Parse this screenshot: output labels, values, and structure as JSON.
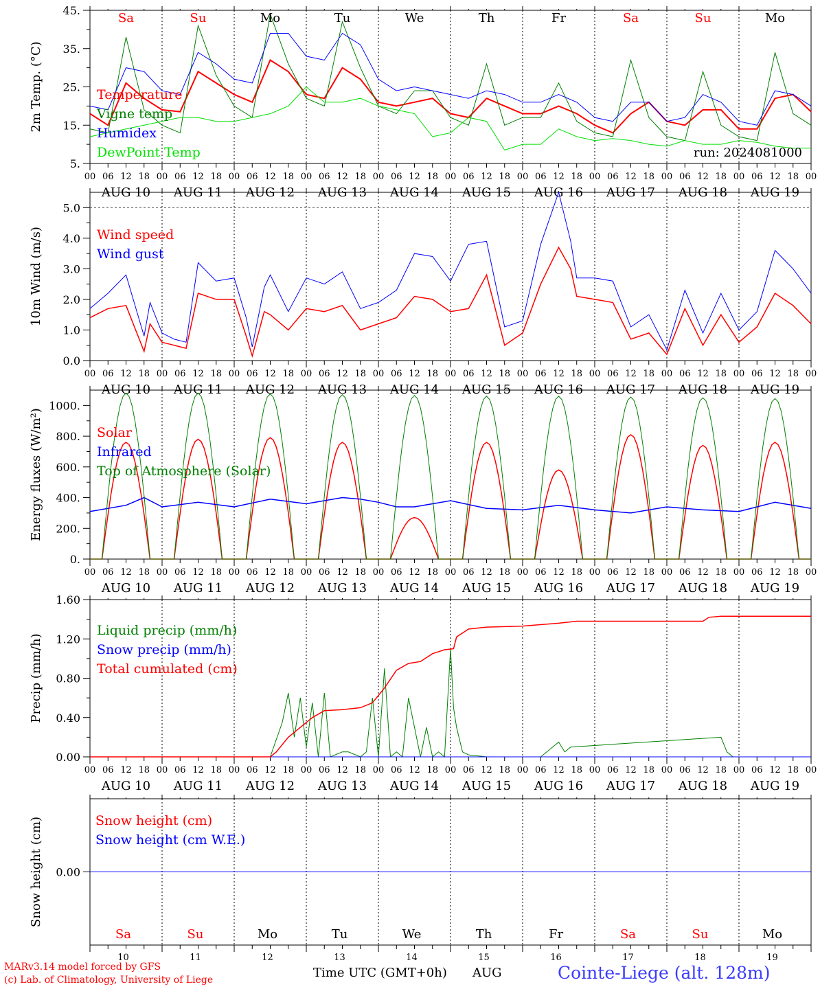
{
  "run_label": "run: 2024081000",
  "time_axis_label": "Time UTC (GMT+0h)",
  "month_label": "AUG",
  "credit_line1": "MARv3.14 model forced by GFS",
  "credit_line2": "(c) Lab. of Climatology, University of Liege",
  "station_label": "Cointe-Liege (alt. 128m)",
  "days": [
    "10",
    "11",
    "12",
    "13",
    "14",
    "15",
    "16",
    "17",
    "18",
    "19"
  ],
  "day_labels": [
    "AUG 10",
    "AUG 11",
    "AUG 12",
    "AUG 13",
    "AUG 14",
    "AUG 15",
    "AUG 16",
    "AUG 17",
    "AUG 18",
    "AUG 19"
  ],
  "weekdays": [
    "Sa",
    "Su",
    "Mo",
    "Tu",
    "We",
    "Th",
    "Fr",
    "Sa",
    "Su",
    "Mo"
  ],
  "weekday_colors": [
    "#ff0000",
    "#ff0000",
    "#000000",
    "#000000",
    "#000000",
    "#000000",
    "#000000",
    "#ff0000",
    "#ff0000",
    "#000000"
  ],
  "hour_ticks": [
    "00",
    "06",
    "12",
    "18"
  ],
  "last_hour_tick": "00",
  "chart_data": [
    {
      "id": "temp",
      "type": "line",
      "ylabel": "2m Temp. (°C)",
      "ylim": [
        5,
        45
      ],
      "yticks": [
        5,
        15,
        25,
        35,
        45
      ],
      "ytick_labels": [
        "5.",
        "15.",
        "25.",
        "35.",
        "45."
      ],
      "x_unit": "hours since Aug 10 00 UTC",
      "legend": "upper-left",
      "series": [
        {
          "name": "Temperature",
          "color": "#ff0000",
          "width": 2,
          "x": [
            0,
            6,
            12,
            18,
            24,
            30,
            36,
            42,
            48,
            54,
            60,
            66,
            72,
            78,
            84,
            90,
            96,
            102,
            108,
            114,
            120,
            126,
            132,
            138,
            144,
            150,
            156,
            162,
            168,
            174,
            180,
            186,
            192,
            198,
            204,
            210,
            216,
            222,
            228,
            234,
            240
          ],
          "values": [
            18,
            15,
            26,
            22,
            19,
            18.5,
            29,
            26,
            23,
            21,
            32,
            29,
            23,
            22,
            30,
            27,
            21,
            20,
            21,
            22,
            18,
            17,
            22,
            20,
            18,
            18,
            20,
            18,
            15,
            13,
            18,
            21,
            16,
            15,
            19,
            19,
            14,
            14,
            22,
            23,
            18.5
          ]
        },
        {
          "name": "Vigne temp",
          "color": "#008000",
          "width": 1,
          "x": [
            0,
            6,
            12,
            18,
            24,
            30,
            36,
            42,
            48,
            54,
            60,
            66,
            72,
            78,
            84,
            90,
            96,
            102,
            108,
            114,
            120,
            126,
            132,
            138,
            144,
            150,
            156,
            162,
            168,
            174,
            180,
            186,
            192,
            198,
            204,
            210,
            216,
            222,
            228,
            234,
            240
          ],
          "values": [
            14,
            13,
            38,
            19,
            15,
            13,
            41,
            28,
            20,
            17,
            44,
            31,
            22,
            20,
            42,
            30,
            20,
            18,
            24,
            24,
            17,
            15,
            31,
            15,
            17,
            17,
            26,
            16,
            13,
            12,
            32,
            17,
            12,
            11,
            29,
            15,
            12,
            11,
            34,
            18,
            15
          ]
        },
        {
          "name": "Humidex",
          "color": "#0000ff",
          "width": 1,
          "x": [
            0,
            6,
            12,
            18,
            24,
            30,
            36,
            42,
            48,
            54,
            60,
            66,
            72,
            78,
            84,
            90,
            96,
            102,
            108,
            114,
            120,
            126,
            132,
            138,
            144,
            150,
            156,
            162,
            168,
            174,
            180,
            186,
            192,
            198,
            204,
            210,
            216,
            222,
            228,
            234,
            240
          ],
          "values": [
            20,
            19,
            30,
            29,
            24,
            23,
            34,
            31,
            27,
            26,
            39,
            39,
            33,
            32,
            39,
            36,
            27,
            24,
            25,
            24,
            23,
            22,
            24,
            23,
            21,
            21,
            23,
            21,
            17,
            16,
            21,
            21,
            16,
            17,
            23,
            21,
            16,
            15,
            24,
            23,
            20
          ]
        },
        {
          "name": "DewPoint Temp",
          "color": "#00e000",
          "width": 1,
          "x": [
            0,
            6,
            12,
            18,
            24,
            30,
            36,
            42,
            48,
            54,
            60,
            66,
            72,
            78,
            84,
            90,
            96,
            102,
            108,
            114,
            120,
            126,
            132,
            138,
            144,
            150,
            156,
            162,
            168,
            174,
            180,
            186,
            192,
            198,
            204,
            210,
            216,
            222,
            228,
            234,
            240
          ],
          "values": [
            12,
            13,
            14,
            15,
            16,
            17,
            17,
            16,
            16,
            17,
            18,
            20,
            25,
            21,
            21,
            22,
            20,
            19,
            18,
            12,
            13,
            17,
            16,
            8.5,
            10,
            10,
            14,
            12,
            11,
            11.5,
            11,
            10,
            9.5,
            11,
            10,
            10,
            11,
            10.5,
            9.5,
            9,
            9
          ]
        }
      ]
    },
    {
      "id": "wind",
      "type": "line",
      "ylabel": "10m Wind (m/s)",
      "ylim": [
        0,
        5.5
      ],
      "yticks": [
        0,
        1,
        2,
        3,
        4,
        5
      ],
      "ytick_labels": [
        "0.0",
        "1.0",
        "2.0",
        "3.0",
        "4.0",
        "5.0"
      ],
      "ref_line": 5.0,
      "legend": "upper-left",
      "series": [
        {
          "name": "Wind speed",
          "color": "#ff0000",
          "width": 1.5,
          "x": [
            0,
            6,
            12,
            18,
            20,
            24,
            28,
            32,
            36,
            42,
            48,
            52,
            54,
            58,
            60,
            66,
            72,
            78,
            84,
            90,
            96,
            102,
            108,
            114,
            120,
            126,
            132,
            138,
            144,
            150,
            156,
            160,
            162,
            168,
            174,
            180,
            186,
            192,
            198,
            204,
            210,
            216,
            222,
            228,
            234,
            240
          ],
          "values": [
            1.4,
            1.7,
            1.8,
            0.3,
            1.2,
            0.6,
            0.5,
            0.4,
            2.2,
            2.0,
            2.0,
            0.8,
            0.15,
            1.6,
            1.5,
            1.0,
            1.7,
            1.6,
            1.8,
            1.0,
            1.2,
            1.4,
            2.1,
            2.0,
            1.6,
            1.7,
            2.8,
            0.5,
            0.9,
            2.5,
            3.7,
            3.0,
            2.1,
            2.0,
            1.9,
            0.7,
            0.9,
            0.2,
            1.7,
            0.5,
            1.5,
            0.6,
            1.1,
            2.2,
            1.8,
            1.2
          ]
        },
        {
          "name": "Wind gust",
          "color": "#0000ff",
          "width": 1,
          "x": [
            0,
            6,
            12,
            18,
            20,
            24,
            28,
            32,
            36,
            42,
            48,
            52,
            54,
            58,
            60,
            66,
            72,
            78,
            84,
            90,
            96,
            102,
            108,
            114,
            120,
            126,
            132,
            138,
            144,
            150,
            156,
            160,
            162,
            168,
            174,
            180,
            186,
            192,
            198,
            204,
            210,
            216,
            222,
            228,
            234,
            240
          ],
          "values": [
            1.7,
            2.2,
            2.8,
            0.8,
            1.9,
            0.9,
            0.7,
            0.6,
            3.2,
            2.6,
            2.7,
            1.4,
            0.45,
            2.4,
            2.8,
            1.6,
            2.7,
            2.5,
            2.9,
            1.7,
            1.9,
            2.3,
            3.5,
            3.4,
            2.6,
            3.8,
            3.9,
            1.1,
            1.3,
            3.8,
            5.5,
            3.9,
            2.7,
            2.7,
            2.6,
            1.1,
            1.5,
            0.35,
            2.3,
            0.9,
            2.2,
            1.0,
            1.6,
            3.6,
            3.0,
            2.2
          ]
        }
      ]
    },
    {
      "id": "energy",
      "type": "line",
      "ylabel": "Energy fluxes (W/m²)",
      "ylim": [
        0,
        1100
      ],
      "yticks": [
        0,
        200,
        400,
        600,
        800,
        1000
      ],
      "ytick_labels": [
        "0.",
        "200.",
        "400.",
        "600.",
        "800.",
        "1000."
      ],
      "legend": "upper-left",
      "series": [
        {
          "name": "Solar",
          "color": "#ff0000",
          "width": 1.5,
          "daily_peak": [
            760,
            780,
            790,
            760,
            270,
            760,
            580,
            810,
            740,
            760
          ],
          "day_start_hour": 4,
          "day_end_hour": 20
        },
        {
          "name": "Infrared",
          "color": "#0000ff",
          "width": 1.5,
          "x": [
            0,
            12,
            18,
            24,
            36,
            48,
            60,
            72,
            84,
            90,
            96,
            102,
            108,
            120,
            132,
            144,
            156,
            168,
            180,
            192,
            204,
            216,
            228,
            240
          ],
          "values": [
            310,
            350,
            400,
            340,
            370,
            340,
            390,
            360,
            400,
            390,
            370,
            340,
            340,
            380,
            330,
            320,
            350,
            320,
            300,
            340,
            320,
            310,
            370,
            330
          ]
        },
        {
          "name": "Top of Atmosphere (Solar)",
          "color": "#008000",
          "width": 1,
          "daily_peak": [
            1080,
            1080,
            1075,
            1070,
            1065,
            1060,
            1060,
            1055,
            1050,
            1045
          ],
          "day_start_hour": 4,
          "day_end_hour": 20
        }
      ]
    },
    {
      "id": "precip",
      "type": "line",
      "ylabel": "Precip (mm/h)",
      "ylim": [
        0,
        1.6
      ],
      "yticks": [
        0,
        0.4,
        0.8,
        1.2,
        1.6
      ],
      "ytick_labels": [
        "0.00",
        "0.40",
        "0.80",
        "1.20",
        "1.60"
      ],
      "legend": "upper-left",
      "series": [
        {
          "name": "Liquid precip (mm/h)",
          "color": "#008000",
          "width": 1,
          "x": [
            0,
            60,
            64,
            66,
            68,
            70,
            72,
            74,
            76,
            78,
            80,
            84,
            86,
            90,
            92,
            94,
            96,
            98,
            100,
            102,
            104,
            106,
            110,
            112,
            114,
            116,
            118,
            120,
            121,
            122,
            124,
            126,
            132,
            150,
            156,
            158,
            160,
            210,
            212,
            214,
            240
          ],
          "values": [
            0,
            0,
            0.35,
            0.65,
            0.2,
            0.6,
            0.1,
            0.55,
            0,
            0.65,
            0,
            0.05,
            0.05,
            0,
            0.05,
            0.6,
            0,
            0.9,
            0,
            0.05,
            0,
            0.6,
            0,
            0.3,
            0,
            0.05,
            0,
            1.1,
            0.5,
            0.3,
            0.05,
            0.02,
            0,
            0,
            0.15,
            0.05,
            0.1,
            0.2,
            0.05,
            0,
            0
          ]
        },
        {
          "name": "Snow precip (mm/h)",
          "color": "#0000ff",
          "width": 1,
          "x": [
            0,
            240
          ],
          "values": [
            0,
            0
          ]
        },
        {
          "name": "Total cumulated (cm)",
          "color": "#ff0000",
          "width": 1.5,
          "x": [
            0,
            60,
            62,
            66,
            70,
            74,
            78,
            84,
            90,
            94,
            98,
            102,
            106,
            110,
            114,
            118,
            121,
            122,
            126,
            132,
            144,
            156,
            162,
            168,
            186,
            204,
            206,
            210,
            240
          ],
          "values": [
            0,
            0,
            0.05,
            0.2,
            0.3,
            0.4,
            0.47,
            0.48,
            0.5,
            0.55,
            0.7,
            0.88,
            0.95,
            0.97,
            1.05,
            1.09,
            1.1,
            1.22,
            1.3,
            1.32,
            1.33,
            1.36,
            1.38,
            1.38,
            1.38,
            1.38,
            1.42,
            1.43,
            1.43
          ]
        }
      ]
    },
    {
      "id": "snow",
      "type": "line",
      "ylabel": "Snow height (cm)",
      "ylim": [
        -1,
        1
      ],
      "yticks": [
        0
      ],
      "ytick_labels": [
        "0.00"
      ],
      "legend": "upper-left",
      "series": [
        {
          "name": "Snow height (cm)",
          "color": "#ff0000",
          "width": 1,
          "x": [
            0,
            240
          ],
          "values": [
            0,
            0
          ]
        },
        {
          "name": "Snow height (cm W.E.)",
          "color": "#0000ff",
          "width": 1,
          "x": [
            0,
            240
          ],
          "values": [
            0,
            0
          ]
        }
      ]
    }
  ]
}
